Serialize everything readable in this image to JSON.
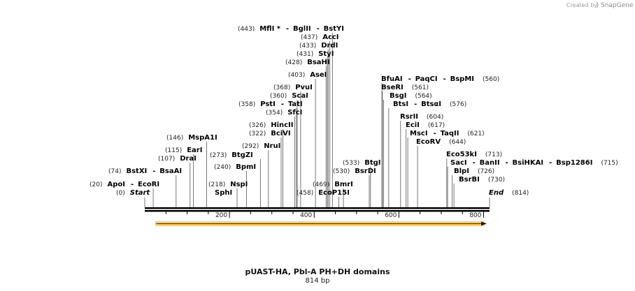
{
  "credit": {
    "prefix": "Created by",
    "brand": "SnapGene"
  },
  "plasmid": {
    "title": "pUAST-HA, Pbl-A PH+DH domains",
    "length_label": "814 bp",
    "length": 814
  },
  "axis": {
    "ticks": [
      "200",
      "400",
      "600",
      "800"
    ]
  },
  "sites": [
    {
      "id": "start",
      "pos": 0,
      "pos_label": "(0)",
      "names": [
        "Start"
      ],
      "italic": true
    },
    {
      "id": "apoi",
      "pos": 20,
      "pos_label": "(20)",
      "names": [
        "ApoI",
        "EcoRI"
      ]
    },
    {
      "id": "bstxi",
      "pos": 74,
      "pos_label": "(74)",
      "names": [
        "BstXI",
        "BsaAI"
      ]
    },
    {
      "id": "drai",
      "pos": 107,
      "pos_label": "(107)",
      "names": [
        "DraI"
      ]
    },
    {
      "id": "eari",
      "pos": 115,
      "pos_label": "(115)",
      "names": [
        "EarI"
      ]
    },
    {
      "id": "mspa1i",
      "pos": 146,
      "pos_label": "(146)",
      "names": [
        "MspA1I"
      ]
    },
    {
      "id": "nspi",
      "pos": 218,
      "pos_label": "(218)",
      "names": [
        "NspI"
      ]
    },
    {
      "id": "sphi",
      "pos": 218,
      "pos_label": "",
      "names": [
        "SphI"
      ]
    },
    {
      "id": "bpmi",
      "pos": 240,
      "pos_label": "(240)",
      "names": [
        "BpmI"
      ]
    },
    {
      "id": "btgzi",
      "pos": 273,
      "pos_label": "(273)",
      "names": [
        "BtgZI"
      ]
    },
    {
      "id": "nrui",
      "pos": 292,
      "pos_label": "(292)",
      "names": [
        "NruI"
      ]
    },
    {
      "id": "bcivi",
      "pos": 322,
      "pos_label": "(322)",
      "names": [
        "BciVI"
      ]
    },
    {
      "id": "hincii",
      "pos": 326,
      "pos_label": "(326)",
      "names": [
        "HincII"
      ]
    },
    {
      "id": "sfci",
      "pos": 354,
      "pos_label": "(354)",
      "names": [
        "SfcI"
      ]
    },
    {
      "id": "psti",
      "pos": 358,
      "pos_label": "(358)",
      "names": [
        "PstI",
        "TatI"
      ]
    },
    {
      "id": "scai",
      "pos": 360,
      "pos_label": "(360)",
      "names": [
        "ScaI"
      ]
    },
    {
      "id": "pvui",
      "pos": 368,
      "pos_label": "(368)",
      "names": [
        "PvuI"
      ]
    },
    {
      "id": "asei",
      "pos": 403,
      "pos_label": "(403)",
      "names": [
        "AseI"
      ]
    },
    {
      "id": "bsahi",
      "pos": 428,
      "pos_label": "(428)",
      "names": [
        "BsaHI"
      ]
    },
    {
      "id": "styi",
      "pos": 431,
      "pos_label": "(431)",
      "names": [
        "StyI"
      ]
    },
    {
      "id": "drdi",
      "pos": 433,
      "pos_label": "(433)",
      "names": [
        "DrdI"
      ]
    },
    {
      "id": "acci",
      "pos": 437,
      "pos_label": "(437)",
      "names": [
        "AccI"
      ]
    },
    {
      "id": "mfli",
      "pos": 443,
      "pos_label": "(443)",
      "names": [
        "MflI *",
        "BglII",
        "BstYI"
      ]
    },
    {
      "id": "ecop15i",
      "pos": 458,
      "pos_label": "(458)",
      "names": [
        "EcoP15I"
      ]
    },
    {
      "id": "bmri",
      "pos": 469,
      "pos_label": "(469)",
      "names": [
        "BmrI"
      ]
    },
    {
      "id": "bsrdi",
      "pos": 530,
      "pos_label": "(530)",
      "names": [
        "BsrDI"
      ]
    },
    {
      "id": "btgi",
      "pos": 533,
      "pos_label": "(533)",
      "names": [
        "BtgI"
      ]
    },
    {
      "id": "bfuai",
      "pos": 560,
      "pos_label": "(560)",
      "names": [
        "BfuAI",
        "PaqCI",
        "BspMI"
      ]
    },
    {
      "id": "bseri",
      "pos": 561,
      "pos_label": "(561)",
      "names": [
        "BseRI"
      ]
    },
    {
      "id": "bsgi",
      "pos": 564,
      "pos_label": "(564)",
      "names": [
        "BsgI"
      ]
    },
    {
      "id": "btsi",
      "pos": 576,
      "pos_label": "(576)",
      "names": [
        "BtsI",
        "BtsαI"
      ]
    },
    {
      "id": "rsrii",
      "pos": 604,
      "pos_label": "(604)",
      "names": [
        "RsrII"
      ]
    },
    {
      "id": "ecii",
      "pos": 617,
      "pos_label": "(617)",
      "names": [
        "EciI"
      ]
    },
    {
      "id": "msci",
      "pos": 621,
      "pos_label": "(621)",
      "names": [
        "MscI",
        "TaqII"
      ]
    },
    {
      "id": "ecorv",
      "pos": 644,
      "pos_label": "(644)",
      "names": [
        "EcoRV"
      ]
    },
    {
      "id": "eco53ki",
      "pos": 713,
      "pos_label": "(713)",
      "names": [
        "Eco53kI"
      ]
    },
    {
      "id": "saci",
      "pos": 715,
      "pos_label": "(715)",
      "names": [
        "SacI",
        "BanII",
        "BsiHKAI",
        "Bsp1286I"
      ]
    },
    {
      "id": "blpi",
      "pos": 726,
      "pos_label": "(726)",
      "names": [
        "BlpI"
      ]
    },
    {
      "id": "bsrbi",
      "pos": 730,
      "pos_label": "(730)",
      "names": [
        "BsrBI"
      ]
    },
    {
      "id": "end",
      "pos": 814,
      "pos_label": "(814)",
      "names": [
        "End"
      ],
      "italic": true
    }
  ],
  "colors": {
    "feature_fill": "#f5a623",
    "feature_edge": "#f6d08c",
    "backbone": "#000000"
  }
}
